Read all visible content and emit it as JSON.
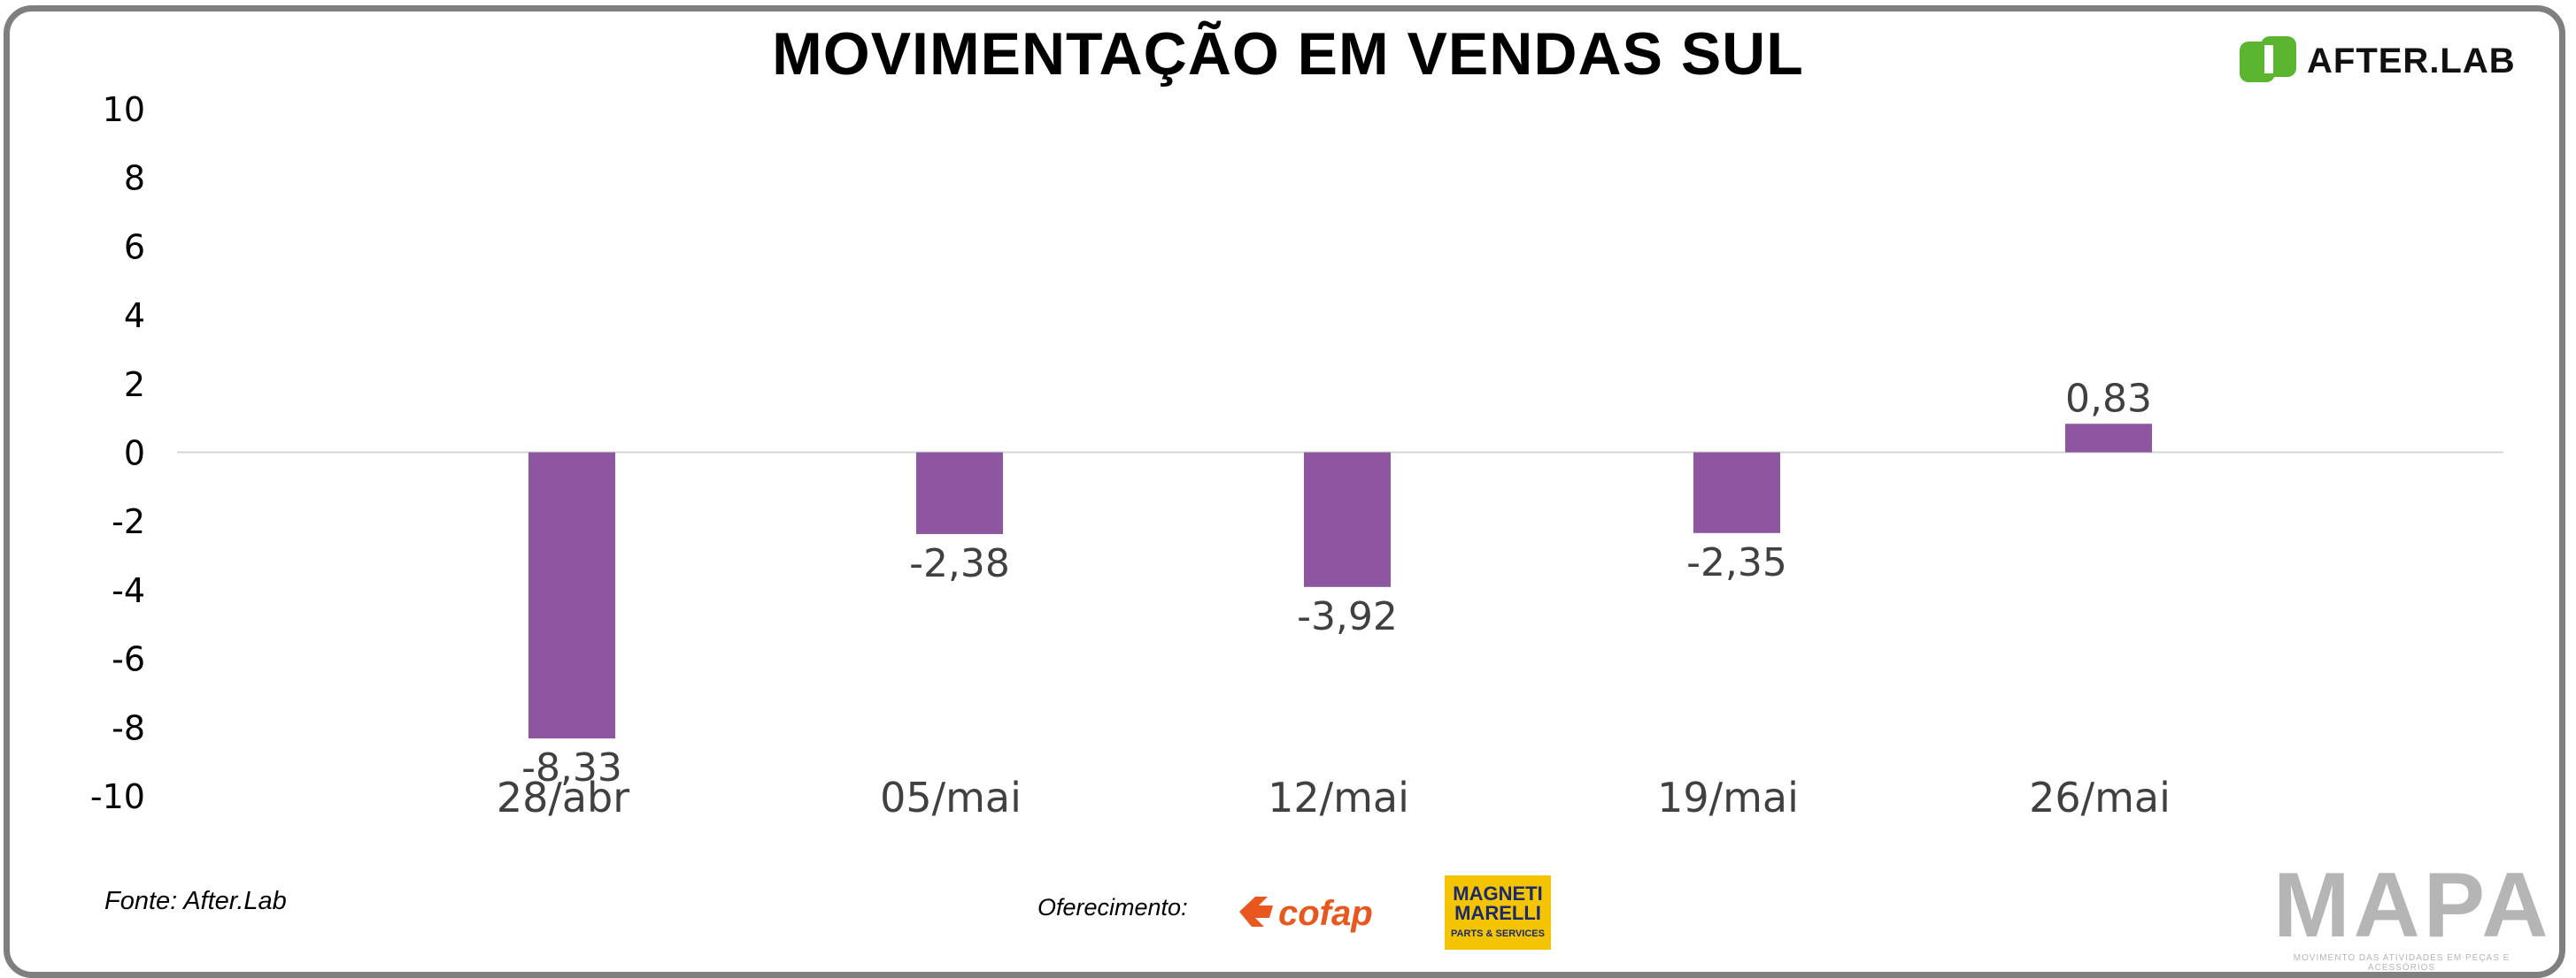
{
  "header": {
    "title": "MOVIMENTAÇÃO EM VENDAS SUL",
    "brand_logo_text": "AFTER.LAB",
    "brand_color": "#5cb531"
  },
  "footer": {
    "source": "Fonte: After.Lab",
    "offer_label": "Oferecimento",
    "sponsor_1": "cofap",
    "sponsor_2_line1": "MAGNETI",
    "sponsor_2_line2": "MARELLI",
    "sponsor_2_tagline": "PARTS & SERVICES",
    "mapa_word": "MAPA",
    "mapa_tagline": "MOVIMENTO DAS ATIVIDADES EM PEÇAS E ACESSÓRIOS"
  },
  "chart_data": {
    "type": "bar",
    "categories": [
      "28/abr",
      "05/mai",
      "12/mai",
      "19/mai",
      "26/mai"
    ],
    "values": [
      -8.33,
      -2.38,
      -3.92,
      -2.35,
      0.83
    ],
    "value_labels": [
      "-8,33",
      "-2,38",
      "-3,92",
      "-2,35",
      "0,83"
    ],
    "yticks": [
      "10",
      "8",
      "6",
      "4",
      "2",
      "0",
      "-2",
      "-4",
      "-6",
      "-8",
      "-10"
    ],
    "ylim": [
      -10,
      10
    ],
    "bar_color": "#8e55a0",
    "grid": false,
    "legend": "none"
  }
}
